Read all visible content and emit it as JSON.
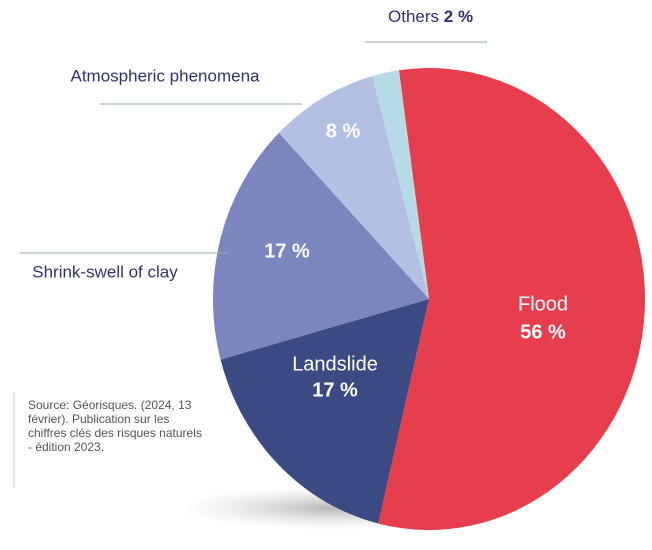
{
  "chart_data": {
    "type": "pie",
    "categories": [
      "Flood",
      "Landslide",
      "Shrink-swell of clay",
      "Atmospheric phenomena",
      "Others"
    ],
    "values": [
      56,
      17,
      17,
      8,
      2
    ],
    "value_labels": [
      "56 %",
      "17 %",
      "17 %",
      "8 %",
      "2 %"
    ],
    "colors": [
      "#e63e4d",
      "#3b4a82",
      "#7b86bf",
      "#b3bfe3",
      "#b6dbe6"
    ],
    "source": "Source: Géorisques. (2024, 13 février). Publication sur les chiffres clés des risques naturels - édition 2023."
  }
}
